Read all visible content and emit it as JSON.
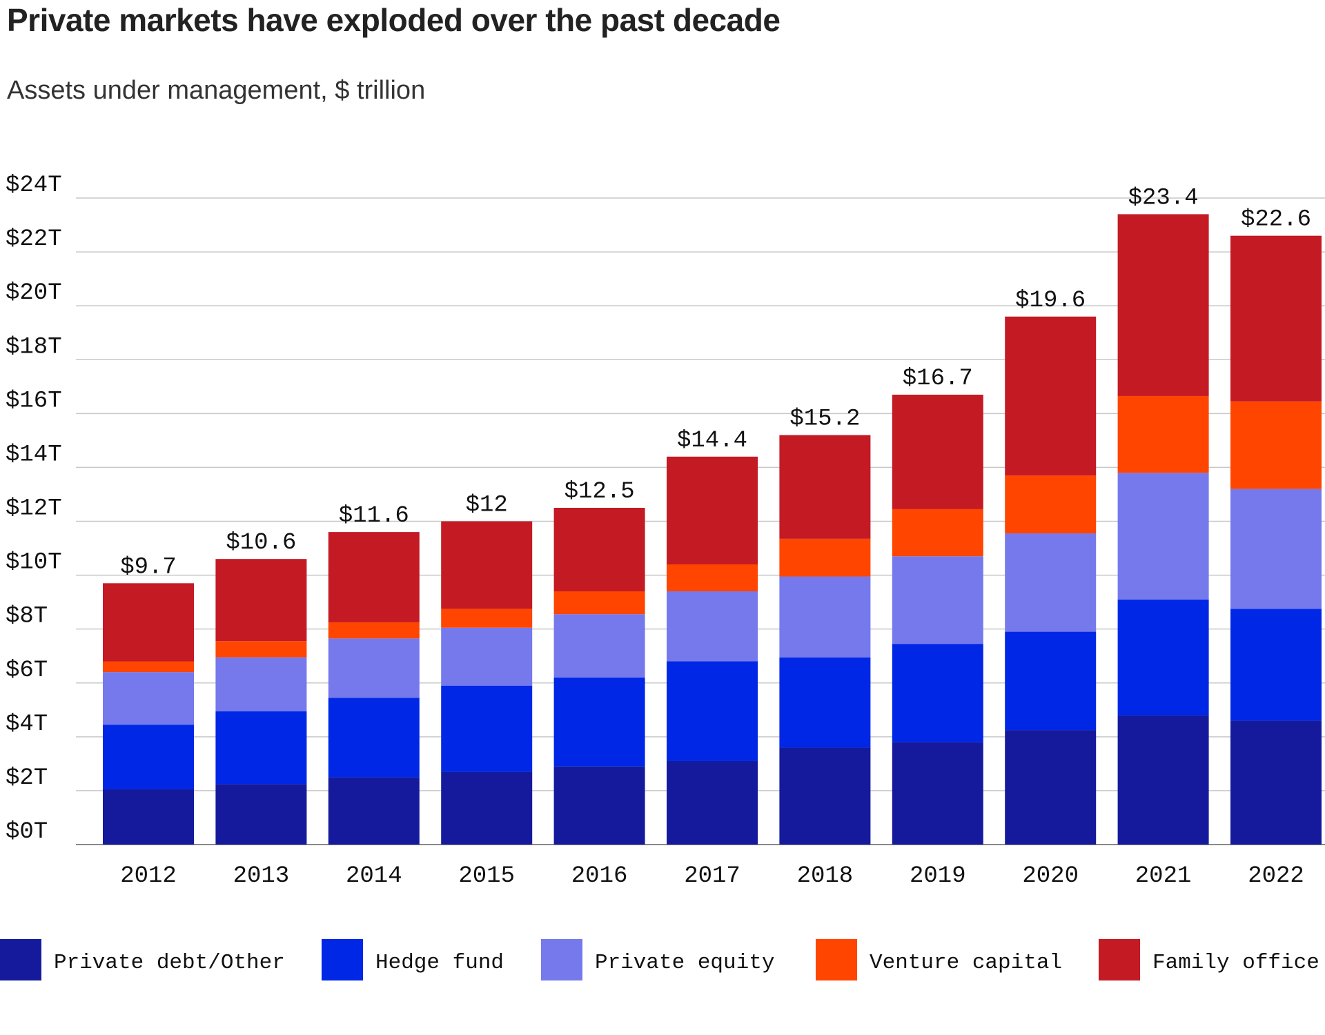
{
  "title": "Private markets have exploded over the past decade",
  "subtitle": "Assets under management, $ trillion",
  "chart_data": {
    "type": "bar",
    "stacked": true,
    "categories": [
      "2012",
      "2013",
      "2014",
      "2015",
      "2016",
      "2017",
      "2018",
      "2019",
      "2020",
      "2021",
      "2022"
    ],
    "series": [
      {
        "name": "Private debt/Other",
        "color": "#151a9c",
        "values": [
          2.05,
          2.25,
          2.5,
          2.7,
          2.9,
          3.1,
          3.6,
          3.8,
          4.25,
          4.8,
          4.6
        ]
      },
      {
        "name": "Hedge fund",
        "color": "#0027e6",
        "values": [
          2.4,
          2.7,
          2.95,
          3.2,
          3.3,
          3.7,
          3.35,
          3.65,
          3.65,
          4.3,
          4.15
        ]
      },
      {
        "name": "Private equity",
        "color": "#7579ec",
        "values": [
          1.95,
          2.0,
          2.2,
          2.15,
          2.35,
          2.6,
          3.0,
          3.25,
          3.65,
          4.7,
          4.45
        ]
      },
      {
        "name": "Venture capital",
        "color": "#ff4500",
        "values": [
          0.4,
          0.6,
          0.6,
          0.7,
          0.85,
          1.0,
          1.4,
          1.75,
          2.15,
          2.85,
          3.25
        ]
      },
      {
        "name": "Family office",
        "color": "#c41a24",
        "values": [
          2.9,
          3.05,
          3.35,
          3.25,
          3.1,
          4.0,
          3.85,
          4.25,
          5.9,
          6.75,
          6.15
        ]
      }
    ],
    "totals": [
      "$9.7",
      "$10.6",
      "$11.6",
      "$12",
      "$12.5",
      "$14.4",
      "$15.2",
      "$16.7",
      "$19.6",
      "$23.4",
      "$22.6"
    ],
    "yticks": [
      "$0T",
      "$2T",
      "$4T",
      "$6T",
      "$8T",
      "$10T",
      "$12T",
      "$14T",
      "$16T",
      "$18T",
      "$20T",
      "$22T",
      "$24T"
    ],
    "ylim": [
      0,
      24
    ],
    "ytick_step": 2,
    "grid": true,
    "legend_position": "bottom"
  }
}
